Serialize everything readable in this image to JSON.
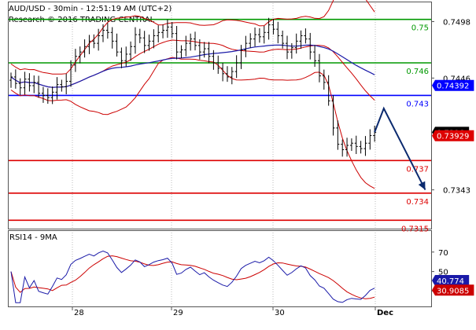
{
  "header": {
    "title": "AUD/USD - 30min - 12:51:19 AM (UTC+2)",
    "subtitle": "Research © 2016 TRADING CENTRAL"
  },
  "colors": {
    "price": "#000000",
    "bollinger": "#cc0000",
    "moving_average": "#1a1aa8",
    "resistance": "#009900",
    "pivot": "#0000ff",
    "support": "#dd0000",
    "arrow": "#0b2a6f",
    "price_tag_bg": "#000000",
    "ma_tag_bg": "#0000ff",
    "low_tag_bg": "#dd0000",
    "rsi": "#1a1aa8",
    "rsi_ma": "#cc0000",
    "frame": "#555555",
    "grid": "#bbbbbb"
  },
  "chart_data": [
    {
      "type": "line",
      "panel": "price",
      "ylim": [
        0.7308,
        0.7515
      ],
      "x_ticks": [
        "28",
        "29",
        "30",
        "Dec"
      ],
      "y_ticks": [
        0.7498,
        0.7446,
        0.7343
      ],
      "levels": [
        {
          "label": "0.75",
          "value": 0.75,
          "kind": "resistance"
        },
        {
          "label": "0.746",
          "value": 0.746,
          "kind": "resistance"
        },
        {
          "label": "0.743",
          "value": 0.743,
          "kind": "pivot"
        },
        {
          "label": "0.737",
          "value": 0.737,
          "kind": "support"
        },
        {
          "label": "0.734",
          "value": 0.734,
          "kind": "support"
        },
        {
          "label": "0.7315",
          "value": 0.7315,
          "kind": "support"
        }
      ],
      "tags": [
        {
          "label": "0.74392",
          "value": 0.74392,
          "kind": "ma"
        },
        {
          "label": "0.7396",
          "value": 0.7396,
          "kind": "price"
        },
        {
          "label": "0.73929",
          "value": 0.73929,
          "kind": "low"
        }
      ],
      "series": [
        {
          "role": "price",
          "values": [
            0.7447,
            0.7441,
            0.7437,
            0.7445,
            0.7439,
            0.7442,
            0.7432,
            0.743,
            0.7428,
            0.7433,
            0.744,
            0.7438,
            0.7443,
            0.7458,
            0.7466,
            0.747,
            0.7475,
            0.748,
            0.7478,
            0.7485,
            0.749,
            0.7488,
            0.748,
            0.747,
            0.7462,
            0.7468,
            0.7475,
            0.7486,
            0.7483,
            0.7476,
            0.748,
            0.7485,
            0.7488,
            0.749,
            0.7493,
            0.7487,
            0.747,
            0.7472,
            0.7478,
            0.7482,
            0.7476,
            0.747,
            0.7473,
            0.7466,
            0.746,
            0.7455,
            0.745,
            0.7447,
            0.7452,
            0.746,
            0.7472,
            0.7478,
            0.7482,
            0.7486,
            0.7484,
            0.7488,
            0.7495,
            0.7491,
            0.7485,
            0.7478,
            0.747,
            0.7474,
            0.748,
            0.7485,
            0.7482,
            0.747,
            0.7462,
            0.7448,
            0.7442,
            0.7425,
            0.74,
            0.7385,
            0.738,
            0.7384,
            0.7386,
            0.7383,
            0.7381,
            0.7386,
            0.7393,
            0.7396
          ]
        },
        {
          "role": "forecast",
          "x_index": [
            79,
            81,
            90
          ],
          "values": [
            0.7396,
            0.7418,
            0.7343
          ]
        }
      ]
    },
    {
      "type": "line",
      "panel": "rsi",
      "title": "RSI14 - 9MA",
      "ylim": [
        15,
        90
      ],
      "y_ticks": [
        70,
        50,
        30
      ],
      "tags": [
        {
          "label": "40.774",
          "value": 40.774,
          "kind": "rsi"
        },
        {
          "label": "30.9085",
          "value": 30.9085,
          "kind": "rsi_ma"
        }
      ]
    }
  ]
}
